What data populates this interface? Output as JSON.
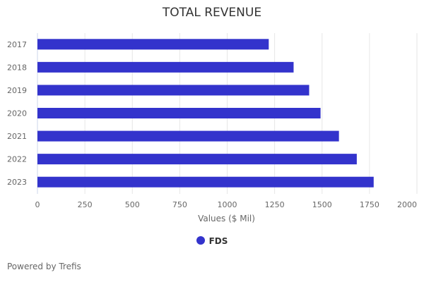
{
  "chart_data": {
    "type": "bar",
    "orientation": "horizontal",
    "title": "TOTAL REVENUE",
    "xlabel": "Values ($ Mil)",
    "ylabel": "",
    "categories": [
      "2017",
      "2018",
      "2019",
      "2020",
      "2021",
      "2022",
      "2023"
    ],
    "series": [
      {
        "name": "FDS",
        "color": "#3333cc",
        "values": [
          1219,
          1350,
          1432,
          1492,
          1589,
          1683,
          1772
        ]
      }
    ],
    "xlim": [
      0,
      2000
    ],
    "xticks": [
      0,
      250,
      500,
      750,
      1000,
      1250,
      1500,
      1750,
      2000
    ],
    "grid": true,
    "legend": "bottom-center"
  },
  "footer": {
    "powered_by": "Powered by Trefis"
  }
}
